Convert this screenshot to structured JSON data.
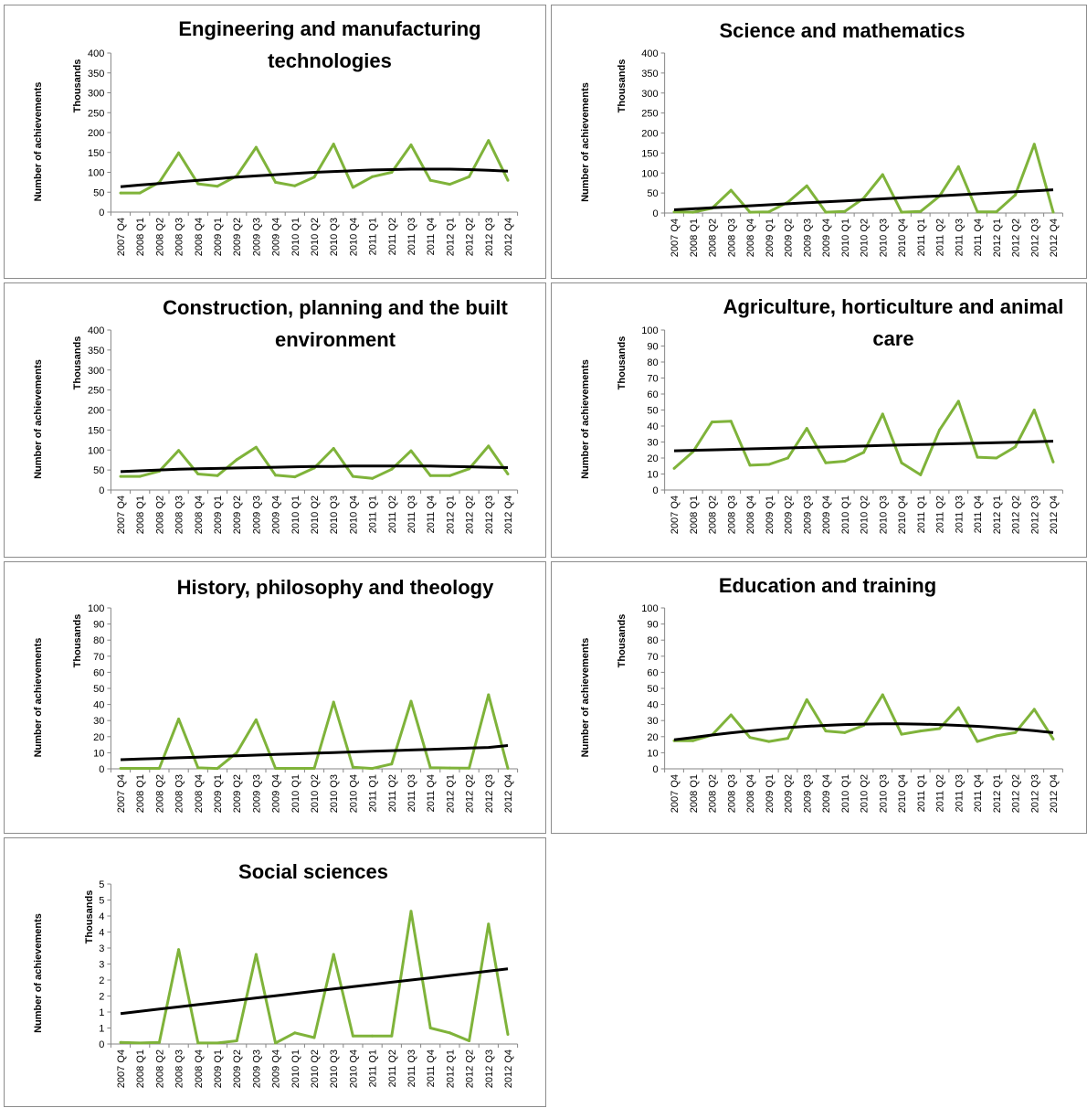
{
  "series_color": "#7fb33a",
  "trend_color": "#000000",
  "chart_data": [
    {
      "type": "line",
      "title_lines": [
        "Engineering and manufacturing",
        "technologies"
      ],
      "ylabel": "Number of achievements",
      "unit_label": "Thousands",
      "categories": [
        "2007 Q4",
        "2008 Q1",
        "2008 Q2",
        "2008 Q3",
        "2008 Q4",
        "2009 Q1",
        "2009 Q2",
        "2009 Q3",
        "2009 Q4",
        "2010 Q1",
        "2010 Q2",
        "2010 Q3",
        "2010 Q4",
        "2011 Q1",
        "2011 Q2",
        "2011 Q3",
        "2011 Q4",
        "2012 Q1",
        "2012 Q2",
        "2012 Q3",
        "2012 Q4"
      ],
      "ylim": [
        0,
        400
      ],
      "yticks": [
        0,
        50,
        100,
        150,
        200,
        250,
        300,
        350,
        400
      ],
      "ytick_labels": [
        "0",
        "50",
        "100",
        "150",
        "200",
        "250",
        "300",
        "350",
        "400"
      ],
      "values": [
        48,
        48,
        75,
        149,
        71,
        65,
        91,
        163,
        75,
        66,
        88,
        171,
        62,
        89,
        100,
        169,
        80,
        70,
        89,
        180,
        80
      ],
      "trend": [
        64,
        68,
        72,
        76,
        80,
        84,
        88,
        91,
        94,
        97,
        100,
        102,
        104,
        106,
        107,
        108,
        108,
        108,
        107,
        105,
        103
      ],
      "grid": false,
      "legend": "none"
    },
    {
      "type": "line",
      "title_lines": [
        "Science and mathematics"
      ],
      "ylabel": "Number of achievements",
      "unit_label": "Thousands",
      "categories": [
        "2007 Q4",
        "2008 Q1",
        "2008 Q2",
        "2008 Q3",
        "2008 Q4",
        "2009 Q1",
        "2009 Q2",
        "2009 Q3",
        "2009 Q4",
        "2010 Q1",
        "2010 Q2",
        "2010 Q3",
        "2010 Q4",
        "2011 Q1",
        "2011 Q2",
        "2011 Q3",
        "2011 Q4",
        "2012 Q1",
        "2012 Q2",
        "2012 Q3",
        "2012 Q4"
      ],
      "ylim": [
        0,
        400
      ],
      "yticks": [
        0,
        50,
        100,
        150,
        200,
        250,
        300,
        350,
        400
      ],
      "ytick_labels": [
        "0",
        "50",
        "100",
        "150",
        "200",
        "250",
        "300",
        "350",
        "400"
      ],
      "values": [
        3,
        2,
        12,
        57,
        2,
        3,
        27,
        68,
        2,
        4,
        37,
        96,
        2,
        4,
        42,
        116,
        3,
        3,
        45,
        172,
        2
      ],
      "trend": [
        8,
        10.5,
        13,
        15.5,
        18,
        20.5,
        23,
        25.5,
        28,
        30.5,
        33,
        35.5,
        38,
        40.5,
        43,
        45.5,
        48,
        50.5,
        53,
        55.5,
        58
      ],
      "grid": false,
      "legend": "none"
    },
    {
      "type": "line",
      "title_lines": [
        "Construction, planning and the built",
        "environment"
      ],
      "ylabel": "Number of achievements",
      "unit_label": "Thousands",
      "categories": [
        "2007 Q4",
        "2008 Q1",
        "2008 Q2",
        "2008 Q3",
        "2008 Q4",
        "2009 Q1",
        "2009 Q2",
        "2009 Q3",
        "2009 Q4",
        "2010 Q1",
        "2010 Q2",
        "2010 Q3",
        "2010 Q4",
        "2011 Q1",
        "2011 Q2",
        "2011 Q3",
        "2011 Q4",
        "2012 Q1",
        "2012 Q2",
        "2012 Q3",
        "2012 Q4"
      ],
      "ylim": [
        0,
        400
      ],
      "yticks": [
        0,
        50,
        100,
        150,
        200,
        250,
        300,
        350,
        400
      ],
      "ytick_labels": [
        "0",
        "50",
        "100",
        "150",
        "200",
        "250",
        "300",
        "350",
        "400"
      ],
      "values": [
        34,
        34,
        47,
        99,
        40,
        36,
        76,
        107,
        37,
        33,
        55,
        104,
        34,
        29,
        52,
        98,
        36,
        36,
        53,
        110,
        40
      ],
      "trend": [
        46,
        48,
        50,
        52,
        53,
        54,
        55,
        56,
        57,
        58,
        59,
        59,
        60,
        60,
        60,
        60,
        60,
        59,
        58,
        57,
        56
      ],
      "grid": false,
      "legend": "none"
    },
    {
      "type": "line",
      "title_lines": [
        "Agriculture, horticulture and animal",
        "care"
      ],
      "ylabel": "Number of achievements",
      "unit_label": "Thousands",
      "categories": [
        "2007 Q4",
        "2008 Q1",
        "2008 Q2",
        "2008 Q3",
        "2008 Q4",
        "2009 Q1",
        "2009 Q2",
        "2009 Q3",
        "2009 Q4",
        "2010 Q1",
        "2010 Q2",
        "2010 Q3",
        "2010 Q4",
        "2011 Q1",
        "2011 Q2",
        "2011 Q3",
        "2011 Q4",
        "2012 Q1",
        "2012 Q2",
        "2012 Q3",
        "2012 Q4"
      ],
      "ylim": [
        0,
        100
      ],
      "yticks": [
        0,
        10,
        20,
        30,
        40,
        50,
        60,
        70,
        80,
        90,
        100
      ],
      "ytick_labels": [
        "0",
        "10",
        "20",
        "30",
        "40",
        "50",
        "60",
        "70",
        "80",
        "90",
        "100"
      ],
      "values": [
        13.5,
        24,
        42.5,
        43,
        15.5,
        16,
        20,
        38.5,
        17,
        18,
        23.5,
        47.5,
        17,
        9.5,
        37.5,
        55.5,
        20.5,
        20,
        27,
        50,
        17.5
      ],
      "trend": [
        24.5,
        24.8,
        25.1,
        25.4,
        25.7,
        26,
        26.3,
        26.6,
        26.9,
        27.2,
        27.5,
        27.8,
        28.1,
        28.4,
        28.7,
        29,
        29.3,
        29.6,
        29.9,
        30.2,
        30.5
      ],
      "grid": false,
      "legend": "none"
    },
    {
      "type": "line",
      "title_lines": [
        "History, philosophy and theology"
      ],
      "ylabel": "Number of achievements",
      "unit_label": "Thousands",
      "categories": [
        "2007 Q4",
        "2008 Q1",
        "2008 Q2",
        "2008 Q3",
        "2008 Q4",
        "2009 Q1",
        "2009 Q2",
        "2009 Q3",
        "2009 Q4",
        "2010 Q1",
        "2010 Q2",
        "2010 Q3",
        "2010 Q4",
        "2011 Q1",
        "2011 Q2",
        "2011 Q3",
        "2011 Q4",
        "2012 Q1",
        "2012 Q2",
        "2012 Q3",
        "2012 Q4"
      ],
      "ylim": [
        0,
        100
      ],
      "yticks": [
        0,
        10,
        20,
        30,
        40,
        50,
        60,
        70,
        80,
        90,
        100
      ],
      "ytick_labels": [
        "0",
        "10",
        "20",
        "30",
        "40",
        "50",
        "60",
        "70",
        "80",
        "90",
        "100"
      ],
      "values": [
        0.3,
        0.3,
        0.3,
        31,
        0.6,
        0.2,
        10,
        30.5,
        0.3,
        0.3,
        0.3,
        41.5,
        1,
        0.2,
        3,
        42,
        0.7,
        0.5,
        0.4,
        46,
        0.3
      ],
      "trend": [
        5.7,
        6.1,
        6.5,
        6.9,
        7.3,
        7.7,
        8.1,
        8.5,
        8.9,
        9.3,
        9.7,
        10.1,
        10.5,
        10.9,
        11.3,
        11.7,
        12.1,
        12.5,
        12.9,
        13.3,
        14.5
      ],
      "grid": false,
      "legend": "none"
    },
    {
      "type": "line",
      "title_lines": [
        "Education and training"
      ],
      "ylabel": "Number of achievements",
      "unit_label": "Thousands",
      "categories": [
        "2007 Q4",
        "2008 Q1",
        "2008 Q2",
        "2008 Q3",
        "2008 Q4",
        "2009 Q1",
        "2009 Q2",
        "2009 Q3",
        "2009 Q4",
        "2010 Q1",
        "2010 Q2",
        "2010 Q3",
        "2010 Q4",
        "2011 Q1",
        "2011 Q2",
        "2011 Q3",
        "2011 Q4",
        "2012 Q1",
        "2012 Q2",
        "2012 Q3",
        "2012 Q4"
      ],
      "ylim": [
        0,
        100
      ],
      "yticks": [
        0,
        10,
        20,
        30,
        40,
        50,
        60,
        70,
        80,
        90,
        100
      ],
      "ytick_labels": [
        "0",
        "10",
        "20",
        "30",
        "40",
        "50",
        "60",
        "70",
        "80",
        "90",
        "100"
      ],
      "values": [
        17.5,
        17.5,
        21,
        33.5,
        19.5,
        17,
        19,
        43,
        23.5,
        22.5,
        27,
        46,
        21.5,
        23.5,
        25,
        38,
        17,
        20.5,
        22.5,
        37,
        18.5
      ],
      "trend": [
        18,
        19.5,
        21,
        22.4,
        23.6,
        24.7,
        25.6,
        26.4,
        27,
        27.5,
        27.8,
        28,
        28,
        27.8,
        27.5,
        27,
        26.4,
        25.6,
        24.7,
        23.7,
        22.5
      ],
      "grid": false,
      "legend": "none"
    },
    {
      "type": "line",
      "title_lines": [
        "Social sciences"
      ],
      "ylabel": "Number of achievements",
      "unit_label": "Thousands",
      "categories": [
        "2007 Q4",
        "2008 Q1",
        "2008 Q2",
        "2008 Q3",
        "2008 Q4",
        "2009 Q1",
        "2009 Q2",
        "2009 Q3",
        "2009 Q4",
        "2010 Q1",
        "2010 Q2",
        "2010 Q3",
        "2010 Q4",
        "2011 Q1",
        "2011 Q2",
        "2011 Q3",
        "2011 Q4",
        "2012 Q1",
        "2012 Q2",
        "2012 Q3",
        "2012 Q4"
      ],
      "ylim": [
        0,
        5
      ],
      "yticks": [
        0,
        0.5,
        1,
        1.5,
        2,
        2.5,
        3,
        3.5,
        4,
        4.5,
        5
      ],
      "ytick_labels": [
        "0",
        "1",
        "1",
        "2",
        "2",
        "3",
        "3",
        "4",
        "4",
        "5",
        "5"
      ],
      "values": [
        0.05,
        0.03,
        0.05,
        2.95,
        0.03,
        0.03,
        0.1,
        2.8,
        0.03,
        0.35,
        0.2,
        2.8,
        0.25,
        0.25,
        0.25,
        4.15,
        0.5,
        0.35,
        0.1,
        3.75,
        0.3
      ],
      "trend": [
        0.95,
        1.02,
        1.09,
        1.16,
        1.23,
        1.3,
        1.37,
        1.44,
        1.51,
        1.58,
        1.65,
        1.72,
        1.79,
        1.86,
        1.93,
        2.0,
        2.07,
        2.14,
        2.21,
        2.28,
        2.35
      ],
      "grid": false,
      "legend": "none"
    }
  ]
}
